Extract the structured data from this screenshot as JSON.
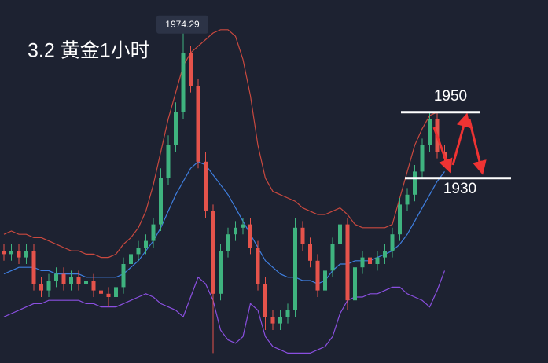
{
  "chart_data": {
    "type": "candlestick",
    "title": "3.2   黄金1小时",
    "ylim": [
      1874,
      1984
    ],
    "up_color": "#3fb37f",
    "down_color": "#e5534b",
    "open": [
      1908,
      1907,
      1908,
      1906,
      1908,
      1898,
      1896,
      1899,
      1901,
      1898,
      1900,
      1898,
      1899,
      1896,
      1895,
      1894,
      1897,
      1904,
      1907,
      1909,
      1911,
      1916,
      1930,
      1940,
      1950,
      1968,
      1958,
      1935,
      1920,
      1895,
      1908,
      1913,
      1915,
      1916,
      1909,
      1898,
      1888,
      1886,
      1888,
      1890,
      1915,
      1910,
      1905,
      1896,
      1902,
      1910,
      1916,
      1893,
      1903,
      1906,
      1904,
      1906,
      1908,
      1913,
      1922,
      1925,
      1932,
      1940,
      1948,
      1938
    ],
    "high": [
      1910,
      1910,
      1910,
      1910,
      1910,
      1900,
      1901,
      1903,
      1903,
      1902,
      1902,
      1901,
      1901,
      1898,
      1897,
      1899,
      1906,
      1909,
      1911,
      1913,
      1918,
      1933,
      1943,
      1953,
      1974.29,
      1970,
      1960,
      1938,
      1922,
      1910,
      1915,
      1917,
      1918,
      1918,
      1911,
      1900,
      1890,
      1890,
      1892,
      1918,
      1917,
      1912,
      1907,
      1904,
      1912,
      1918,
      1918,
      1905,
      1908,
      1908,
      1908,
      1910,
      1915,
      1924,
      1927,
      1934,
      1942,
      1950,
      1950,
      1940
    ],
    "low": [
      1905,
      1905,
      1904,
      1904,
      1896,
      1894,
      1894,
      1897,
      1896,
      1896,
      1896,
      1896,
      1894,
      1893,
      1891,
      1892,
      1895,
      1902,
      1905,
      1907,
      1909,
      1914,
      1928,
      1938,
      1948,
      1956,
      1933,
      1918,
      1877,
      1893,
      1906,
      1911,
      1913,
      1907,
      1896,
      1884,
      1884,
      1884,
      1886,
      1888,
      1908,
      1903,
      1894,
      1894,
      1900,
      1908,
      1890,
      1891,
      1901,
      1902,
      1902,
      1904,
      1906,
      1911,
      1920,
      1923,
      1930,
      1938,
      1936,
      1934
    ],
    "close": [
      1907,
      1908,
      1906,
      1908,
      1898,
      1896,
      1899,
      1901,
      1898,
      1900,
      1898,
      1899,
      1896,
      1895,
      1894,
      1897,
      1904,
      1907,
      1909,
      1911,
      1916,
      1930,
      1940,
      1950,
      1968,
      1958,
      1935,
      1920,
      1895,
      1908,
      1913,
      1915,
      1916,
      1909,
      1898,
      1888,
      1886,
      1888,
      1890,
      1915,
      1910,
      1905,
      1896,
      1902,
      1910,
      1916,
      1893,
      1903,
      1906,
      1904,
      1906,
      1908,
      1913,
      1922,
      1925,
      1932,
      1940,
      1948,
      1938,
      1936
    ],
    "bands": [
      {
        "color": "#c9493f",
        "values": [
          1913,
          1914,
          1913,
          1913,
          1912,
          1912,
          1911,
          1910,
          1909,
          1908,
          1908,
          1907,
          1907,
          1906,
          1906,
          1907,
          1910,
          1912,
          1915,
          1920,
          1928,
          1938,
          1948,
          1956,
          1964,
          1968,
          1970,
          1972,
          1974,
          1975,
          1975,
          1973,
          1966,
          1955,
          1940,
          1930,
          1926,
          1925,
          1924,
          1923,
          1921,
          1920,
          1919,
          1919,
          1920,
          1921,
          1919,
          1916,
          1915,
          1915,
          1915,
          1915,
          1916,
          1924,
          1932,
          1940,
          1945,
          1949,
          1950,
          1950
        ]
      },
      {
        "color": "#3f7fe0",
        "values": [
          1901,
          1902,
          1903,
          1903,
          1903,
          1902,
          1902,
          1901,
          1901,
          1901,
          1901,
          1900,
          1900,
          1900,
          1900,
          1900,
          1901,
          1903,
          1905,
          1908,
          1911,
          1915,
          1920,
          1925,
          1929,
          1933,
          1935,
          1934,
          1931,
          1928,
          1925,
          1921,
          1917,
          1913,
          1909,
          1905,
          1903,
          1901,
          1900,
          1900,
          1899,
          1899,
          1898,
          1899,
          1902,
          1904,
          1904,
          1905,
          1905,
          1905,
          1906,
          1907,
          1908,
          1910,
          1913,
          1917,
          1921,
          1925,
          1929,
          1932
        ]
      },
      {
        "color": "#8a4fe0",
        "values": [
          1888,
          1889,
          1890,
          1891,
          1892,
          1892,
          1893,
          1893,
          1893,
          1893,
          1893,
          1892,
          1892,
          1891,
          1891,
          1891,
          1892,
          1893,
          1894,
          1895,
          1894,
          1892,
          1891,
          1890,
          1888,
          1894,
          1900,
          1898,
          1893,
          1884,
          1881,
          1880,
          1882,
          1892,
          1890,
          1882,
          1879,
          1878,
          1877,
          1877,
          1877,
          1877,
          1878,
          1879,
          1882,
          1889,
          1893,
          1894,
          1894,
          1895,
          1895,
          1896,
          1897,
          1897,
          1895,
          1894,
          1893,
          1891,
          1896,
          1902
        ]
      }
    ],
    "levels": [
      1950,
      1930
    ]
  }
}
